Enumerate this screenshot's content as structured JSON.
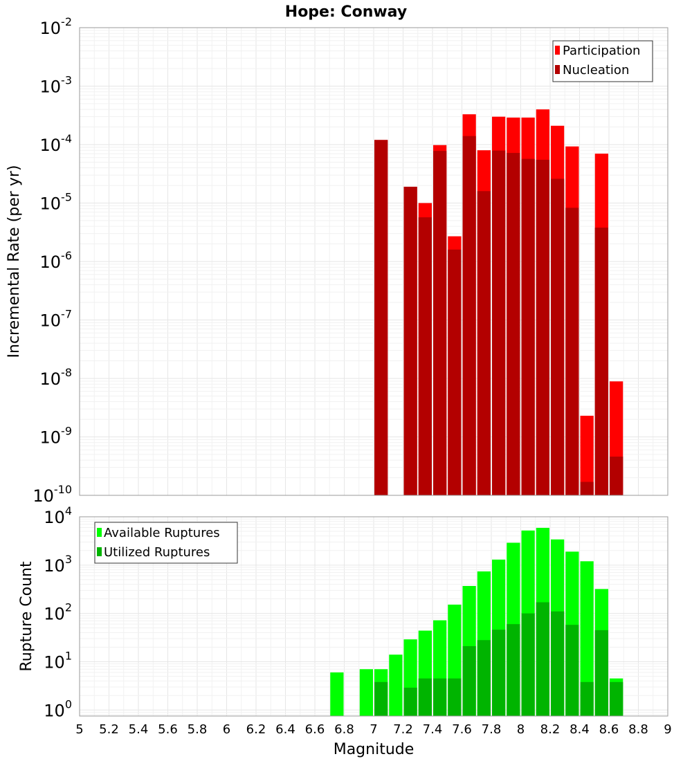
{
  "chart_data": [
    {
      "type": "bar",
      "title": "Hope: Conway",
      "xlabel": "",
      "ylabel": "Incremental Rate (per yr)",
      "xlim": [
        5,
        9
      ],
      "ylim": [
        1e-10,
        0.01
      ],
      "yscale": "log",
      "grid": true,
      "legend_position": "top-right",
      "bin_width": 0.1,
      "x": [
        7.05,
        7.25,
        7.35,
        7.45,
        7.55,
        7.65,
        7.75,
        7.85,
        7.95,
        8.05,
        8.15,
        8.25,
        8.35,
        8.45,
        8.55,
        8.65
      ],
      "series": [
        {
          "name": "Participation",
          "color": "#ff0000",
          "values": [
            0.00012,
            1.9e-05,
            1e-05,
            9.8e-05,
            2.7e-06,
            0.00033,
            8e-05,
            0.0003,
            0.00029,
            0.00029,
            0.0004,
            0.00021,
            9.3e-05,
            2.3e-09,
            7e-05,
            8.9e-09
          ]
        },
        {
          "name": "Nucleation",
          "color": "#b30000",
          "values": [
            0.00012,
            1.9e-05,
            5.7e-06,
            7.8e-05,
            1.6e-06,
            0.00014,
            1.6e-05,
            7.9e-05,
            7.2e-05,
            5.7e-05,
            5.5e-05,
            2.6e-05,
            8.3e-06,
            1.7e-10,
            3.8e-06,
            4.6e-10
          ]
        }
      ],
      "ytick_labels": [
        {
          "base": "10",
          "exp": "-10"
        },
        {
          "base": "10",
          "exp": "-9"
        },
        {
          "base": "10",
          "exp": "-8"
        },
        {
          "base": "10",
          "exp": "-7"
        },
        {
          "base": "10",
          "exp": "-6"
        },
        {
          "base": "10",
          "exp": "-5"
        },
        {
          "base": "10",
          "exp": "-4"
        },
        {
          "base": "10",
          "exp": "-3"
        },
        {
          "base": "10",
          "exp": "-2"
        }
      ]
    },
    {
      "type": "bar",
      "title": "",
      "xlabel": "Magnitude",
      "ylabel": "Rupture Count",
      "xlim": [
        5,
        9
      ],
      "ylim": [
        0.75,
        10000
      ],
      "yscale": "log",
      "grid": true,
      "legend_position": "top-left",
      "bin_width": 0.1,
      "x": [
        6.75,
        6.95,
        7.05,
        7.15,
        7.25,
        7.35,
        7.45,
        7.55,
        7.65,
        7.75,
        7.85,
        7.95,
        8.05,
        8.15,
        8.25,
        8.35,
        8.45,
        8.55,
        8.65
      ],
      "series": [
        {
          "name": "Available Ruptures",
          "color": "#00ff00",
          "values": [
            6,
            7,
            7,
            14,
            29,
            44,
            72,
            152,
            370,
            740,
            1300,
            2900,
            5200,
            5900,
            3400,
            1900,
            1200,
            320,
            4.5
          ]
        },
        {
          "name": "Utilized Ruptures",
          "color": "#00b400",
          "values": [
            0,
            0,
            3.8,
            0,
            2.9,
            4.5,
            4.5,
            4.5,
            21,
            28,
            46,
            60,
            100,
            170,
            110,
            58,
            3.8,
            45,
            3.8
          ]
        }
      ],
      "ytick_labels": [
        {
          "base": "10",
          "exp": "0"
        },
        {
          "base": "10",
          "exp": "1"
        },
        {
          "base": "10",
          "exp": "2"
        },
        {
          "base": "10",
          "exp": "3"
        },
        {
          "base": "10",
          "exp": "4"
        }
      ],
      "xtick_labels": [
        "5",
        "5.2",
        "5.4",
        "5.6",
        "5.8",
        "6",
        "6.2",
        "6.4",
        "6.6",
        "6.8",
        "7",
        "7.2",
        "7.4",
        "7.6",
        "7.8",
        "8",
        "8.2",
        "8.4",
        "8.6",
        "8.8",
        "9"
      ]
    }
  ]
}
